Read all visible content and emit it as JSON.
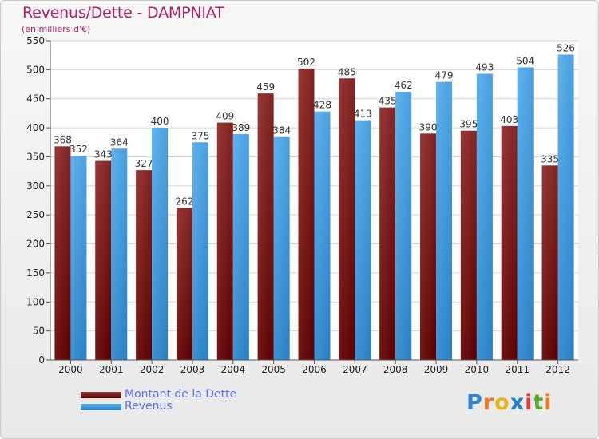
{
  "header": {
    "title": "Revenus/Dette - DAMPNIAT",
    "subtitle": "(en milliers d'€)"
  },
  "colors": {
    "dette_dark": "#5a0000",
    "dette_light": "#973838",
    "revenus_dark": "#2a7fc4",
    "revenus_light": "#5fb2ee",
    "title": "#b01f64",
    "legend_text": "#5a6ef0",
    "axis": "#555555"
  },
  "chart_data": {
    "type": "bar",
    "categories": [
      "2000",
      "2001",
      "2002",
      "2003",
      "2004",
      "2005",
      "2006",
      "2007",
      "2008",
      "2009",
      "2010",
      "2011",
      "2012"
    ],
    "series": [
      {
        "name": "Montant de la Dette",
        "values": [
          368,
          343,
          327,
          262,
          409,
          459,
          502,
          485,
          435,
          390,
          395,
          403,
          335
        ]
      },
      {
        "name": "Revenus",
        "values": [
          352,
          364,
          400,
          375,
          389,
          384,
          428,
          413,
          462,
          479,
          493,
          504,
          526
        ]
      }
    ],
    "ylim": [
      0,
      550
    ],
    "yticks": [
      0,
      50,
      100,
      150,
      200,
      250,
      300,
      350,
      400,
      450,
      500,
      550
    ],
    "grid": true,
    "legend_position": "bottom-left"
  },
  "legend": {
    "items": [
      {
        "label": "Montant de la Dette",
        "color_key": "dette"
      },
      {
        "label": "Revenus",
        "color_key": "revenus"
      }
    ]
  },
  "logo": {
    "text": "Proxiti",
    "letters": [
      "P",
      "r",
      "o",
      "x",
      "i",
      "t",
      "i"
    ],
    "letter_colors": [
      "#2f86d2",
      "#f07a1a",
      "#e8b21c",
      "#1f7fd0",
      "#e23a3a",
      "#5aae2e",
      "#f07a1a"
    ]
  }
}
